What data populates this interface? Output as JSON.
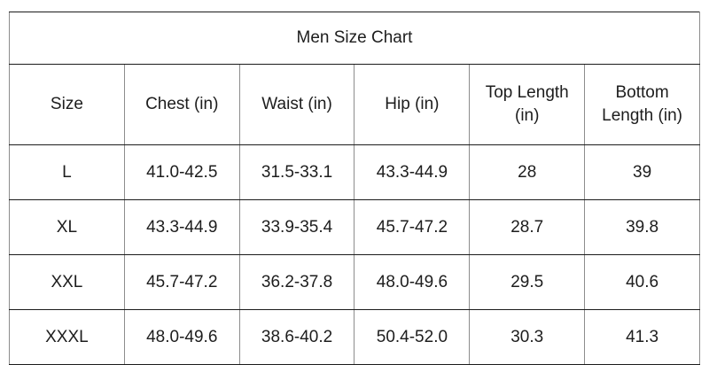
{
  "chart_data": {
    "type": "table",
    "title": "Men Size Chart",
    "columns": [
      "Size",
      "Chest (in)",
      "Waist (in)",
      "Hip (in)",
      "Top Length (in)",
      "Bottom Length (in)"
    ],
    "rows": [
      [
        "L",
        "41.0-42.5",
        "31.5-33.1",
        "43.3-44.9",
        "28",
        "39"
      ],
      [
        "XL",
        "43.3-44.9",
        "33.9-35.4",
        "45.7-47.2",
        "28.7",
        "39.8"
      ],
      [
        "XXL",
        "45.7-47.2",
        "36.2-37.8",
        "48.0-49.6",
        "29.5",
        "40.6"
      ],
      [
        "XXXL",
        "48.0-49.6",
        "38.6-40.2",
        "50.4-52.0",
        "30.3",
        "41.3"
      ]
    ],
    "colors": {
      "text": "#1d1d1d",
      "row_border": "#1c1c1c",
      "column_border": "#8c8c8c",
      "background": "#ffffff"
    },
    "layout_hints": {
      "title_position": "top-center-spanning-row",
      "alignment": "center",
      "grid": "on"
    }
  }
}
